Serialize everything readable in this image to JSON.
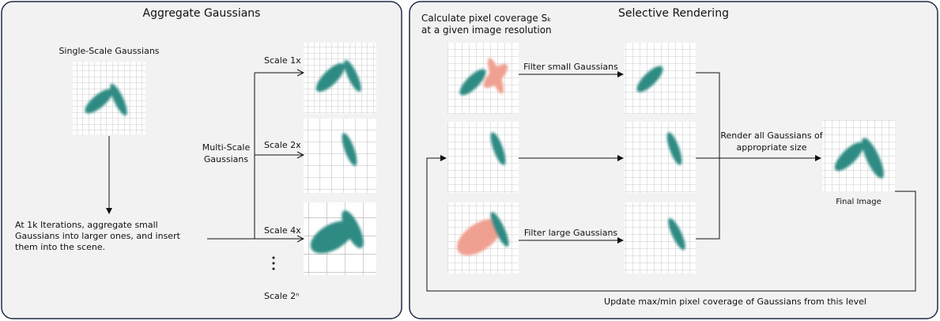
{
  "left_panel": {
    "title": "Aggregate Gaussians",
    "single_scale_label": "Single-Scale Gaussians",
    "aggregate_note": [
      "At 1k Iterations, aggregate small",
      "Gaussians into larger ones, and insert",
      "them into the scene."
    ],
    "multi_scale_label": [
      "Multi-Scale",
      "Gaussians"
    ],
    "scales": [
      "Scale 1x",
      "Scale 2x",
      "Scale 4x",
      "Scale 2ⁿ"
    ]
  },
  "right_panel": {
    "title": "Selective Rendering",
    "coverage_note": [
      "Calculate pixel coverage Sₖ",
      "at a given image resolution"
    ],
    "filter_small": "Filter small Gaussians",
    "filter_large": "Filter large Gaussians",
    "render_note": [
      "Render all Gaussians of",
      "appropriate size"
    ],
    "final_image": "Final Image",
    "feedback": "Update max/min pixel coverage of Gaussians from this level"
  }
}
